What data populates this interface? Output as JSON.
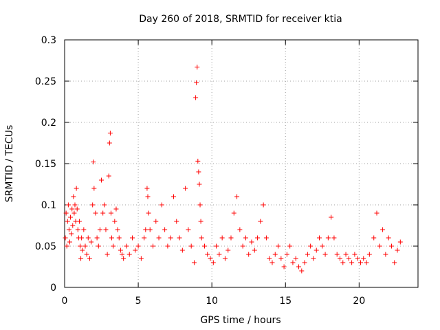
{
  "chart_data": {
    "type": "scatter",
    "title": "Day 260 of 2018, SRMTID for receiver ktia",
    "xlabel": "GPS time / hours",
    "ylabel": "SRMTID / TECUs",
    "xlim": [
      0,
      24
    ],
    "ylim": [
      0,
      0.3
    ],
    "xticks": [
      0,
      5,
      10,
      15,
      20
    ],
    "xtick_labels": [
      "0",
      "5",
      "10",
      "15",
      "20"
    ],
    "yticks": [
      0,
      0.05,
      0.1,
      0.15,
      0.2,
      0.25,
      0.3
    ],
    "ytick_labels": [
      "0",
      "0.05",
      "0.1",
      "0.15",
      "0.2",
      "0.25",
      "0.3"
    ],
    "grid": true,
    "marker": "+",
    "color": "#ff0000",
    "series": [
      {
        "name": "SRMTID",
        "points": [
          [
            0.05,
            0.06
          ],
          [
            0.1,
            0.09
          ],
          [
            0.15,
            0.05
          ],
          [
            0.2,
            0.08
          ],
          [
            0.25,
            0.1
          ],
          [
            0.3,
            0.07
          ],
          [
            0.35,
            0.055
          ],
          [
            0.4,
            0.085
          ],
          [
            0.45,
            0.065
          ],
          [
            0.5,
            0.095
          ],
          [
            0.55,
            0.075
          ],
          [
            0.6,
            0.11
          ],
          [
            0.65,
            0.09
          ],
          [
            0.7,
            0.1
          ],
          [
            0.75,
            0.08
          ],
          [
            0.8,
            0.12
          ],
          [
            0.85,
            0.095
          ],
          [
            0.9,
            0.07
          ],
          [
            0.95,
            0.06
          ],
          [
            1.0,
            0.08
          ],
          [
            1.05,
            0.05
          ],
          [
            1.1,
            0.035
          ],
          [
            1.15,
            0.06
          ],
          [
            1.2,
            0.045
          ],
          [
            1.3,
            0.07
          ],
          [
            1.4,
            0.05
          ],
          [
            1.5,
            0.04
          ],
          [
            1.6,
            0.06
          ],
          [
            1.7,
            0.035
          ],
          [
            1.8,
            0.055
          ],
          [
            1.9,
            0.1
          ],
          [
            1.95,
            0.152
          ],
          [
            2.0,
            0.12
          ],
          [
            2.1,
            0.09
          ],
          [
            2.2,
            0.06
          ],
          [
            2.3,
            0.05
          ],
          [
            2.4,
            0.07
          ],
          [
            2.5,
            0.13
          ],
          [
            2.6,
            0.09
          ],
          [
            2.7,
            0.1
          ],
          [
            2.8,
            0.07
          ],
          [
            2.9,
            0.04
          ],
          [
            3.0,
            0.135
          ],
          [
            3.05,
            0.175
          ],
          [
            3.1,
            0.187
          ],
          [
            3.15,
            0.09
          ],
          [
            3.2,
            0.06
          ],
          [
            3.3,
            0.05
          ],
          [
            3.4,
            0.08
          ],
          [
            3.5,
            0.095
          ],
          [
            3.6,
            0.07
          ],
          [
            3.7,
            0.06
          ],
          [
            3.8,
            0.045
          ],
          [
            3.9,
            0.04
          ],
          [
            4.0,
            0.035
          ],
          [
            4.2,
            0.05
          ],
          [
            4.4,
            0.04
          ],
          [
            4.6,
            0.06
          ],
          [
            4.8,
            0.045
          ],
          [
            5.0,
            0.05
          ],
          [
            5.2,
            0.035
          ],
          [
            5.4,
            0.06
          ],
          [
            5.5,
            0.07
          ],
          [
            5.6,
            0.12
          ],
          [
            5.65,
            0.11
          ],
          [
            5.7,
            0.09
          ],
          [
            5.8,
            0.07
          ],
          [
            6.0,
            0.05
          ],
          [
            6.2,
            0.08
          ],
          [
            6.4,
            0.06
          ],
          [
            6.6,
            0.1
          ],
          [
            6.8,
            0.07
          ],
          [
            7.0,
            0.05
          ],
          [
            7.2,
            0.06
          ],
          [
            7.4,
            0.11
          ],
          [
            7.6,
            0.08
          ],
          [
            7.8,
            0.06
          ],
          [
            8.0,
            0.045
          ],
          [
            8.2,
            0.12
          ],
          [
            8.4,
            0.07
          ],
          [
            8.6,
            0.05
          ],
          [
            8.8,
            0.03
          ],
          [
            8.9,
            0.23
          ],
          [
            8.95,
            0.248
          ],
          [
            9.0,
            0.267
          ],
          [
            9.05,
            0.153
          ],
          [
            9.1,
            0.14
          ],
          [
            9.15,
            0.125
          ],
          [
            9.2,
            0.1
          ],
          [
            9.25,
            0.08
          ],
          [
            9.3,
            0.06
          ],
          [
            9.5,
            0.05
          ],
          [
            9.7,
            0.04
          ],
          [
            9.9,
            0.035
          ],
          [
            10.1,
            0.03
          ],
          [
            10.3,
            0.05
          ],
          [
            10.5,
            0.04
          ],
          [
            10.7,
            0.06
          ],
          [
            10.9,
            0.035
          ],
          [
            11.1,
            0.045
          ],
          [
            11.3,
            0.06
          ],
          [
            11.5,
            0.09
          ],
          [
            11.7,
            0.11
          ],
          [
            11.9,
            0.07
          ],
          [
            12.1,
            0.05
          ],
          [
            12.3,
            0.06
          ],
          [
            12.5,
            0.04
          ],
          [
            12.7,
            0.055
          ],
          [
            12.9,
            0.045
          ],
          [
            13.1,
            0.06
          ],
          [
            13.3,
            0.08
          ],
          [
            13.5,
            0.1
          ],
          [
            13.7,
            0.06
          ],
          [
            13.9,
            0.035
          ],
          [
            14.1,
            0.03
          ],
          [
            14.3,
            0.04
          ],
          [
            14.5,
            0.05
          ],
          [
            14.7,
            0.035
          ],
          [
            14.9,
            0.025
          ],
          [
            15.1,
            0.04
          ],
          [
            15.3,
            0.05
          ],
          [
            15.5,
            0.03
          ],
          [
            15.7,
            0.035
          ],
          [
            15.9,
            0.025
          ],
          [
            16.1,
            0.02
          ],
          [
            16.3,
            0.03
          ],
          [
            16.5,
            0.04
          ],
          [
            16.7,
            0.05
          ],
          [
            16.9,
            0.035
          ],
          [
            17.1,
            0.045
          ],
          [
            17.3,
            0.06
          ],
          [
            17.5,
            0.05
          ],
          [
            17.7,
            0.04
          ],
          [
            17.9,
            0.06
          ],
          [
            18.1,
            0.085
          ],
          [
            18.3,
            0.06
          ],
          [
            18.5,
            0.04
          ],
          [
            18.7,
            0.035
          ],
          [
            18.9,
            0.03
          ],
          [
            19.1,
            0.04
          ],
          [
            19.3,
            0.035
          ],
          [
            19.5,
            0.03
          ],
          [
            19.7,
            0.04
          ],
          [
            19.9,
            0.035
          ],
          [
            20.1,
            0.03
          ],
          [
            20.3,
            0.035
          ],
          [
            20.5,
            0.03
          ],
          [
            20.7,
            0.04
          ],
          [
            21.0,
            0.06
          ],
          [
            21.2,
            0.09
          ],
          [
            21.4,
            0.05
          ],
          [
            21.6,
            0.07
          ],
          [
            21.8,
            0.04
          ],
          [
            22.0,
            0.06
          ],
          [
            22.2,
            0.05
          ],
          [
            22.4,
            0.03
          ],
          [
            22.6,
            0.045
          ],
          [
            22.8,
            0.055
          ]
        ]
      }
    ]
  }
}
